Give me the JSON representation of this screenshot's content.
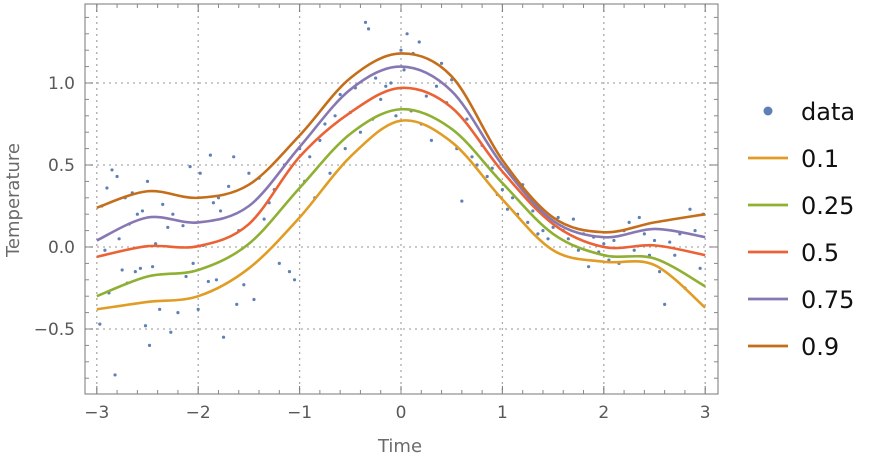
{
  "chart_data": {
    "type": "scatter",
    "title": "",
    "xlabel": "Time",
    "ylabel": "Temperature",
    "xlim": [
      -3.12,
      3.12
    ],
    "ylim": [
      -0.9,
      1.48
    ],
    "grid": true,
    "legend_placement": "right",
    "x_ticks": [
      -3,
      -2,
      -1,
      0,
      1,
      2,
      3
    ],
    "x_tick_labels": [
      "−3",
      "−2",
      "−1",
      "0",
      "1",
      "2",
      "3"
    ],
    "y_ticks": [
      -0.5,
      0.0,
      0.5,
      1.0
    ],
    "y_tick_labels": [
      "−0.5",
      "0.0",
      "0.5",
      "1.0"
    ],
    "scatter": {
      "name": "data",
      "color": "#5E81B5",
      "points": [
        [
          -2.97,
          -0.47
        ],
        [
          -2.95,
          0.25
        ],
        [
          -2.92,
          -0.02
        ],
        [
          -2.9,
          0.36
        ],
        [
          -2.88,
          -0.28
        ],
        [
          -2.85,
          0.47
        ],
        [
          -2.82,
          -0.78
        ],
        [
          -2.8,
          0.43
        ],
        [
          -2.78,
          0.05
        ],
        [
          -2.75,
          -0.14
        ],
        [
          -2.72,
          0.3
        ],
        [
          -2.7,
          -0.22
        ],
        [
          -2.68,
          0.14
        ],
        [
          -2.65,
          0.33
        ],
        [
          -2.62,
          -0.15
        ],
        [
          -2.6,
          0.2
        ],
        [
          -2.57,
          -0.13
        ],
        [
          -2.55,
          0.22
        ],
        [
          -2.52,
          -0.48
        ],
        [
          -2.5,
          0.4
        ],
        [
          -2.48,
          -0.6
        ],
        [
          -2.45,
          -0.12
        ],
        [
          -2.42,
          0.02
        ],
        [
          -2.38,
          -0.38
        ],
        [
          -2.35,
          0.26
        ],
        [
          -2.3,
          0.12
        ],
        [
          -2.27,
          -0.52
        ],
        [
          -2.25,
          0.2
        ],
        [
          -2.2,
          -0.4
        ],
        [
          -2.15,
          0.13
        ],
        [
          -2.12,
          -0.18
        ],
        [
          -2.08,
          0.49
        ],
        [
          -2.05,
          -0.1
        ],
        [
          -2.0,
          -0.38
        ],
        [
          -1.98,
          0.45
        ],
        [
          -1.95,
          0.01
        ],
        [
          -1.9,
          -0.21
        ],
        [
          -1.88,
          0.56
        ],
        [
          -1.85,
          0.27
        ],
        [
          -1.82,
          -0.2
        ],
        [
          -1.8,
          0.3
        ],
        [
          -1.78,
          0.22
        ],
        [
          -1.75,
          -0.55
        ],
        [
          -1.7,
          0.37
        ],
        [
          -1.65,
          0.55
        ],
        [
          -1.62,
          -0.35
        ],
        [
          -1.6,
          0.1
        ],
        [
          -1.55,
          -0.23
        ],
        [
          -1.5,
          0.45
        ],
        [
          -1.45,
          -0.32
        ],
        [
          -1.4,
          0.42
        ],
        [
          -1.35,
          0.17
        ],
        [
          -1.3,
          0.27
        ],
        [
          -1.25,
          0.35
        ],
        [
          -1.2,
          -0.1
        ],
        [
          -1.15,
          0.5
        ],
        [
          -1.1,
          -0.15
        ],
        [
          -1.05,
          -0.2
        ],
        [
          -1.0,
          0.6
        ],
        [
          -0.95,
          0.4
        ],
        [
          -0.9,
          0.55
        ],
        [
          -0.85,
          0.3
        ],
        [
          -0.8,
          0.65
        ],
        [
          -0.75,
          0.75
        ],
        [
          -0.7,
          0.45
        ],
        [
          -0.65,
          0.8
        ],
        [
          -0.6,
          0.93
        ],
        [
          -0.55,
          0.6
        ],
        [
          -0.5,
          0.82
        ],
        [
          -0.45,
          0.97
        ],
        [
          -0.4,
          0.7
        ],
        [
          -0.35,
          1.37
        ],
        [
          -0.32,
          1.33
        ],
        [
          -0.28,
          0.78
        ],
        [
          -0.25,
          1.03
        ],
        [
          -0.2,
          0.9
        ],
        [
          -0.15,
          0.98
        ],
        [
          -0.1,
          1.0
        ],
        [
          -0.05,
          0.8
        ],
        [
          0.0,
          1.2
        ],
        [
          0.03,
          1.08
        ],
        [
          0.06,
          1.3
        ],
        [
          0.1,
          0.83
        ],
        [
          0.12,
          1.18
        ],
        [
          0.18,
          1.25
        ],
        [
          0.2,
          0.75
        ],
        [
          0.25,
          0.92
        ],
        [
          0.3,
          0.65
        ],
        [
          0.35,
          0.98
        ],
        [
          0.4,
          1.12
        ],
        [
          0.45,
          0.88
        ],
        [
          0.5,
          1.02
        ],
        [
          0.55,
          0.6
        ],
        [
          0.6,
          0.28
        ],
        [
          0.65,
          0.78
        ],
        [
          0.7,
          0.55
        ],
        [
          0.75,
          0.5
        ],
        [
          0.8,
          0.62
        ],
        [
          0.85,
          0.43
        ],
        [
          0.9,
          0.48
        ],
        [
          0.95,
          0.32
        ],
        [
          1.0,
          0.35
        ],
        [
          1.05,
          0.23
        ],
        [
          1.1,
          0.3
        ],
        [
          1.15,
          0.2
        ],
        [
          1.2,
          0.38
        ],
        [
          1.25,
          0.15
        ],
        [
          1.3,
          0.22
        ],
        [
          1.35,
          0.08
        ],
        [
          1.4,
          0.1
        ],
        [
          1.45,
          0.05
        ],
        [
          1.5,
          0.12
        ],
        [
          1.55,
          0.18
        ],
        [
          1.6,
          0.1
        ],
        [
          1.65,
          0.05
        ],
        [
          1.7,
          0.17
        ],
        [
          1.75,
          -0.02
        ],
        [
          1.8,
          0.08
        ],
        [
          1.85,
          -0.12
        ],
        [
          1.9,
          0.06
        ],
        [
          1.95,
          -0.03
        ],
        [
          2.0,
          0.02
        ],
        [
          2.05,
          -0.08
        ],
        [
          2.1,
          0.04
        ],
        [
          2.15,
          -0.1
        ],
        [
          2.2,
          0.1
        ],
        [
          2.25,
          0.15
        ],
        [
          2.3,
          -0.02
        ],
        [
          2.35,
          0.18
        ],
        [
          2.4,
          0.08
        ],
        [
          2.45,
          -0.05
        ],
        [
          2.5,
          0.04
        ],
        [
          2.55,
          -0.15
        ],
        [
          2.6,
          -0.35
        ],
        [
          2.65,
          0.03
        ],
        [
          2.7,
          -0.05
        ],
        [
          2.75,
          0.08
        ],
        [
          2.8,
          -0.25
        ],
        [
          2.85,
          0.23
        ],
        [
          2.9,
          0.1
        ],
        [
          2.95,
          -0.13
        ],
        [
          2.98,
          0.2
        ]
      ]
    },
    "x": [
      -3,
      -2.5,
      -2,
      -1.5,
      -1,
      -0.5,
      0,
      0.5,
      1,
      1.5,
      2,
      2.5,
      3
    ],
    "series": [
      {
        "name": "0.1",
        "color": "#E19C24",
        "values": [
          -0.38,
          -0.335,
          -0.3,
          -0.13,
          0.18,
          0.55,
          0.77,
          0.64,
          0.29,
          -0.02,
          -0.09,
          -0.11,
          -0.37
        ]
      },
      {
        "name": "0.25",
        "color": "#8FB032",
        "values": [
          -0.3,
          -0.18,
          -0.14,
          0.02,
          0.36,
          0.69,
          0.84,
          0.72,
          0.39,
          0.08,
          -0.05,
          -0.07,
          -0.24
        ]
      },
      {
        "name": "0.5",
        "color": "#EB6235",
        "values": [
          -0.06,
          0.005,
          0.005,
          0.14,
          0.55,
          0.82,
          0.97,
          0.85,
          0.46,
          0.14,
          0.0,
          0.01,
          -0.05
        ]
      },
      {
        "name": "0.75",
        "color": "#8778B3",
        "values": [
          0.04,
          0.18,
          0.15,
          0.25,
          0.61,
          0.96,
          1.1,
          0.95,
          0.5,
          0.16,
          0.06,
          0.11,
          0.06
        ]
      },
      {
        "name": "0.9",
        "color": "#C56E1A",
        "values": [
          0.24,
          0.34,
          0.3,
          0.38,
          0.68,
          1.03,
          1.18,
          1.04,
          0.53,
          0.18,
          0.09,
          0.15,
          0.2
        ]
      }
    ]
  }
}
